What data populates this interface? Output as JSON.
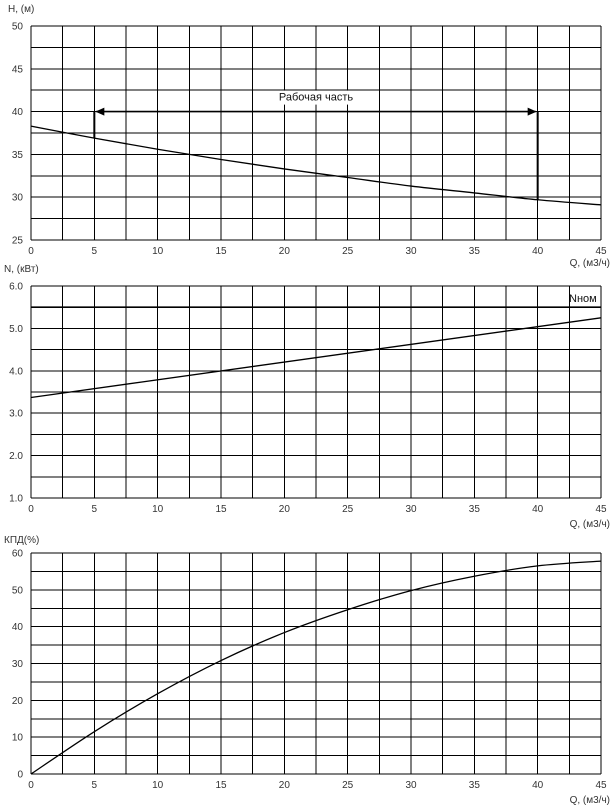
{
  "chart_data": [
    {
      "type": "line",
      "ylabel": "H, (м)",
      "xlabel": "Q, (м3/ч)",
      "xlim": [
        0,
        45
      ],
      "ylim": [
        25,
        50
      ],
      "xticks": [
        "0",
        "5",
        "10",
        "15",
        "20",
        "25",
        "30",
        "35",
        "40",
        "45"
      ],
      "yticks": [
        "25",
        "30",
        "35",
        "40",
        "45",
        "50"
      ],
      "grid": true,
      "series": [
        {
          "x": [
            0,
            5,
            10,
            15,
            20,
            25,
            30,
            35,
            40,
            45
          ],
          "values": [
            38.3,
            36.9,
            35.6,
            34.4,
            33.3,
            32.3,
            31.3,
            30.5,
            29.7,
            29.1
          ]
        }
      ],
      "annotation": {
        "text": "Рабочая часть",
        "x_range": [
          5,
          40
        ],
        "y": 40
      }
    },
    {
      "type": "line",
      "ylabel": "N, (кВт)",
      "xlabel": "Q, (м3/ч)",
      "xlim": [
        0,
        45
      ],
      "ylim": [
        1.0,
        6.0
      ],
      "xticks": [
        "0",
        "5",
        "10",
        "15",
        "20",
        "25",
        "30",
        "35",
        "40",
        "45"
      ],
      "yticks": [
        "1.0",
        "2.0",
        "3.0",
        "4.0",
        "5.0",
        "6.0"
      ],
      "grid": true,
      "series": [
        {
          "x": [
            0,
            45
          ],
          "values": [
            3.37,
            5.25
          ]
        }
      ],
      "reference_line": {
        "label": "Nном",
        "y": 5.5
      }
    },
    {
      "type": "line",
      "ylabel": "КПД(%)",
      "xlabel": "Q, (м3/ч)",
      "xlim": [
        0,
        45
      ],
      "ylim": [
        0,
        60
      ],
      "xticks": [
        "0",
        "5",
        "10",
        "15",
        "20",
        "25",
        "30",
        "35",
        "40",
        "45"
      ],
      "yticks": [
        "0",
        "10",
        "20",
        "30",
        "40",
        "50",
        "60"
      ],
      "grid": true,
      "series": [
        {
          "x": [
            0,
            5,
            10,
            15,
            20,
            25,
            30,
            35,
            40,
            45
          ],
          "values": [
            0,
            11.5,
            21.8,
            30.8,
            38.4,
            44.6,
            49.8,
            53.7,
            56.5,
            57.8
          ]
        }
      ]
    }
  ]
}
